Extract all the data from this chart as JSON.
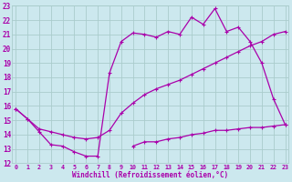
{
  "xlabel": "Windchill (Refroidissement éolien,°C)",
  "background_color": "#cce8ee",
  "line_color": "#aa00aa",
  "xmin": 0,
  "xmax": 23,
  "ymin": 12,
  "ymax": 23,
  "line1_x": [
    0,
    1,
    2,
    3,
    4,
    5,
    6,
    7,
    8,
    9,
    10,
    11,
    12,
    13,
    14,
    15,
    16,
    17,
    18,
    19,
    20,
    21,
    22,
    23
  ],
  "line1_y": [
    15.8,
    15.1,
    14.2,
    13.3,
    13.2,
    12.8,
    12.5,
    12.5,
    18.3,
    20.5,
    21.1,
    21.0,
    20.8,
    21.2,
    21.0,
    22.2,
    21.7,
    22.8,
    21.2,
    21.5,
    20.5,
    19.0,
    16.5,
    14.7
  ],
  "line2_x": [
    0,
    1,
    2,
    3,
    4,
    5,
    6,
    7,
    8,
    9,
    10,
    11,
    12,
    13,
    14,
    15,
    16,
    17,
    18,
    19,
    20,
    21,
    22,
    23
  ],
  "line2_y": [
    15.8,
    15.1,
    14.4,
    14.2,
    14.0,
    13.8,
    13.7,
    13.8,
    14.3,
    15.5,
    16.2,
    16.8,
    17.2,
    17.5,
    17.8,
    18.2,
    18.6,
    19.0,
    19.4,
    19.8,
    20.2,
    20.5,
    21.0,
    21.2
  ],
  "line3_x": [
    10,
    11,
    12,
    13,
    14,
    15,
    16,
    17,
    18,
    19,
    20,
    21,
    22,
    23
  ],
  "line3_y": [
    13.2,
    13.5,
    13.5,
    13.7,
    13.8,
    14.0,
    14.1,
    14.3,
    14.3,
    14.4,
    14.5,
    14.5,
    14.6,
    14.7
  ],
  "grid_color": "#aacccc",
  "xtick_labels": [
    "0",
    "1",
    "2",
    "3",
    "4",
    "5",
    "6",
    "7",
    "8",
    "9",
    "10",
    "11",
    "12",
    "13",
    "14",
    "15",
    "16",
    "17",
    "18",
    "19",
    "20",
    "21",
    "22",
    "23"
  ],
  "ytick_labels": [
    "12",
    "13",
    "14",
    "15",
    "16",
    "17",
    "18",
    "19",
    "20",
    "21",
    "22",
    "23"
  ]
}
